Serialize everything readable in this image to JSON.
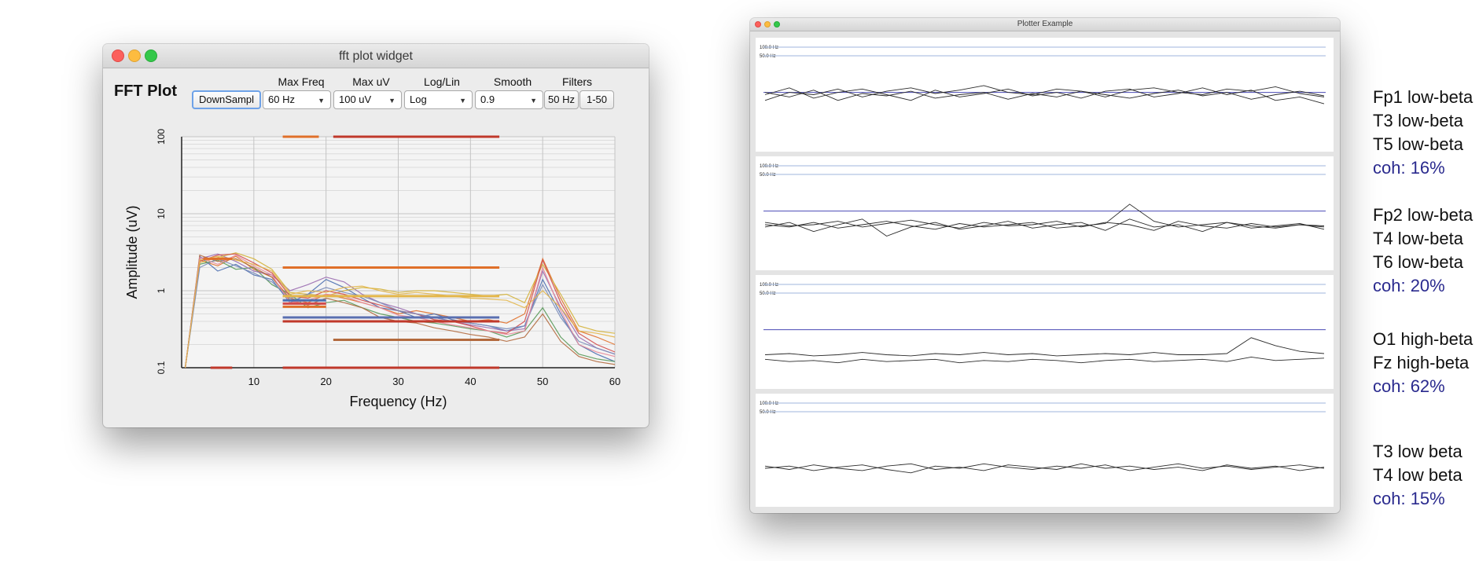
{
  "fft_window": {
    "title": "fft plot widget",
    "heading": "FFT Plot",
    "controls": {
      "downsample_label": "DownSampl",
      "max_freq": {
        "label": "Max Freq",
        "value": "60 Hz"
      },
      "max_uv": {
        "label": "Max uV",
        "value": "100 uV"
      },
      "log_lin": {
        "label": "Log/Lin",
        "value": "Log"
      },
      "smooth": {
        "label": "Smooth",
        "value": "0.9"
      },
      "filters": {
        "label": "Filters",
        "notch": "50 Hz",
        "band": "1-50"
      }
    }
  },
  "chart_data": {
    "type": "line",
    "title": "",
    "xlabel": "Frequency (Hz)",
    "ylabel": "Amplitude (uV)",
    "xlim": [
      0,
      60
    ],
    "ylim": [
      0.1,
      100
    ],
    "y_scale": "log",
    "grid": true,
    "x_ticks": [
      "10",
      "20",
      "30",
      "40",
      "50",
      "60"
    ],
    "y_ticks": [
      "0.1",
      "1",
      "10",
      "100"
    ],
    "colors": [
      "#e0702a",
      "#4c6fb0",
      "#5a9a5a",
      "#9a6cb0",
      "#d4b23a",
      "#d24a4a",
      "#b36a3e",
      "#7a8bb8",
      "#e88a9a",
      "#e3b64a"
    ],
    "x": [
      0.5,
      2.5,
      5,
      7.5,
      10,
      12.5,
      15,
      17.5,
      20,
      22.5,
      25,
      27.5,
      30,
      32.5,
      35,
      37.5,
      40,
      42.5,
      45,
      47.5,
      50,
      52.5,
      55,
      57.5,
      60
    ],
    "series": [
      {
        "values": [
          0.1,
          2.5,
          2.1,
          2.8,
          1.9,
          1.5,
          0.8,
          0.7,
          0.9,
          0.8,
          0.7,
          0.6,
          0.5,
          0.55,
          0.5,
          0.45,
          0.4,
          0.42,
          0.38,
          0.5,
          2.6,
          0.8,
          0.3,
          0.25,
          0.2
        ]
      },
      {
        "values": [
          0.1,
          2.8,
          1.8,
          2.2,
          1.6,
          1.4,
          0.7,
          0.9,
          1.4,
          1.1,
          0.8,
          0.6,
          0.55,
          0.45,
          0.5,
          0.42,
          0.38,
          0.35,
          0.3,
          0.35,
          1.4,
          0.5,
          0.2,
          0.15,
          0.12
        ]
      },
      {
        "values": [
          0.1,
          2.2,
          2.5,
          1.9,
          2.0,
          1.2,
          0.9,
          0.6,
          0.7,
          0.75,
          0.6,
          0.5,
          0.45,
          0.4,
          0.38,
          0.35,
          0.32,
          0.3,
          0.25,
          0.3,
          0.6,
          0.25,
          0.15,
          0.13,
          0.12
        ]
      },
      {
        "values": [
          0.1,
          2.6,
          3.0,
          2.4,
          1.8,
          1.6,
          1.0,
          1.2,
          1.5,
          1.3,
          0.9,
          0.7,
          0.6,
          0.5,
          0.45,
          0.4,
          0.36,
          0.33,
          0.3,
          0.32,
          1.8,
          0.6,
          0.25,
          0.18,
          0.15
        ]
      },
      {
        "values": [
          0.1,
          2.3,
          2.7,
          3.1,
          2.6,
          1.9,
          0.95,
          0.9,
          0.85,
          1.0,
          1.1,
          1.05,
          0.95,
          1.0,
          1.0,
          0.95,
          0.9,
          0.85,
          0.9,
          0.7,
          2.2,
          0.9,
          0.35,
          0.3,
          0.28
        ]
      },
      {
        "values": [
          0.1,
          2.4,
          2.9,
          3.0,
          2.3,
          1.7,
          0.85,
          0.8,
          1.0,
          0.9,
          0.75,
          0.65,
          0.55,
          0.5,
          0.42,
          0.4,
          0.35,
          0.3,
          0.28,
          0.4,
          2.5,
          0.7,
          0.28,
          0.2,
          0.16
        ]
      },
      {
        "values": [
          0.1,
          2.9,
          2.4,
          2.6,
          2.0,
          1.5,
          0.75,
          0.65,
          0.8,
          0.7,
          0.6,
          0.45,
          0.4,
          0.38,
          0.33,
          0.3,
          0.27,
          0.25,
          0.22,
          0.25,
          0.5,
          0.22,
          0.14,
          0.12,
          0.11
        ]
      },
      {
        "values": [
          0.1,
          2.0,
          2.6,
          2.1,
          1.7,
          1.3,
          0.8,
          0.9,
          1.1,
          0.95,
          0.85,
          0.7,
          0.55,
          0.5,
          0.45,
          0.4,
          0.38,
          0.35,
          0.32,
          0.35,
          1.2,
          0.45,
          0.22,
          0.18,
          0.15
        ]
      },
      {
        "values": [
          0.1,
          2.7,
          2.2,
          2.9,
          2.1,
          1.6,
          0.7,
          0.75,
          0.9,
          0.85,
          0.7,
          0.6,
          0.48,
          0.45,
          0.4,
          0.36,
          0.33,
          0.3,
          0.27,
          0.3,
          2.0,
          0.55,
          0.2,
          0.16,
          0.14
        ]
      },
      {
        "values": [
          0.1,
          2.5,
          2.8,
          2.5,
          2.2,
          1.8,
          0.9,
          1.0,
          0.95,
          1.1,
          1.15,
          1.0,
          0.9,
          0.95,
          0.9,
          0.85,
          0.8,
          0.78,
          0.75,
          0.6,
          1.0,
          0.6,
          0.3,
          0.28,
          0.25
        ]
      }
    ],
    "band_markers": [
      {
        "x": [
          3,
          7
        ],
        "y": 2.6,
        "color": "#e0702a"
      },
      {
        "x": [
          14,
          44
        ],
        "y": 2.0,
        "color": "#e0702a"
      },
      {
        "x": [
          14,
          44
        ],
        "y": 0.85,
        "color": "#e3b64a"
      },
      {
        "x": [
          14,
          20
        ],
        "y": 0.75,
        "color": "#4c6fb0"
      },
      {
        "x": [
          14,
          20
        ],
        "y": 0.68,
        "color": "#d24a4a"
      },
      {
        "x": [
          14,
          20
        ],
        "y": 0.62,
        "color": "#e0702a"
      },
      {
        "x": [
          14,
          44
        ],
        "y": 0.45,
        "color": "#5a6fb0"
      },
      {
        "x": [
          14,
          44
        ],
        "y": 0.4,
        "color": "#c0392b"
      },
      {
        "x": [
          21,
          44
        ],
        "y": 0.23,
        "color": "#b36a3e"
      },
      {
        "x": [
          14,
          44
        ],
        "y": 0.1,
        "color": "#c0392b"
      },
      {
        "x": [
          14,
          19
        ],
        "y": 100,
        "color": "#e0702a"
      },
      {
        "x": [
          21,
          44
        ],
        "y": 100,
        "color": "#c0392b"
      },
      {
        "x": [
          4,
          7
        ],
        "y": 0.1,
        "color": "#c0392b"
      }
    ]
  },
  "plotter_window": {
    "title": "Plotter Example",
    "hz_labels": [
      "100.0  Hz",
      "50.0  Hz"
    ],
    "panels": [
      {
        "baseline_ref": true,
        "traces": [
          [
            0.55,
            0.48,
            0.5,
            0.45,
            0.52,
            0.47,
            0.44,
            0.49,
            0.46,
            0.42,
            0.48,
            0.5,
            0.45,
            0.47,
            0.52,
            0.46,
            0.44,
            0.48,
            0.5,
            0.45,
            0.47,
            0.43,
            0.49,
            0.52
          ],
          [
            0.48,
            0.52,
            0.46,
            0.55,
            0.49,
            0.51,
            0.47,
            0.53,
            0.5,
            0.48,
            0.54,
            0.49,
            0.52,
            0.47,
            0.5,
            0.53,
            0.49,
            0.46,
            0.51,
            0.48,
            0.54,
            0.5,
            0.47,
            0.51
          ],
          [
            0.5,
            0.44,
            0.53,
            0.48,
            0.45,
            0.5,
            0.55,
            0.46,
            0.52,
            0.49,
            0.45,
            0.51,
            0.48,
            0.53,
            0.47,
            0.45,
            0.52,
            0.49,
            0.44,
            0.5,
            0.46,
            0.55,
            0.52,
            0.58
          ]
        ]
      },
      {
        "baseline_ref": true,
        "traces": [
          [
            0.6,
            0.62,
            0.58,
            0.63,
            0.6,
            0.57,
            0.61,
            0.64,
            0.59,
            0.62,
            0.6,
            0.58,
            0.63,
            0.61,
            0.59,
            0.42,
            0.57,
            0.62,
            0.6,
            0.58,
            0.63,
            0.61,
            0.59,
            0.64
          ],
          [
            0.62,
            0.58,
            0.66,
            0.6,
            0.55,
            0.7,
            0.62,
            0.58,
            0.64,
            0.61,
            0.57,
            0.63,
            0.6,
            0.58,
            0.65,
            0.55,
            0.62,
            0.6,
            0.66,
            0.58,
            0.61,
            0.63,
            0.6,
            0.62
          ],
          [
            0.58,
            0.61,
            0.6,
            0.57,
            0.62,
            0.59,
            0.56,
            0.6,
            0.63,
            0.58,
            0.61,
            0.6,
            0.57,
            0.62,
            0.58,
            0.6,
            0.65,
            0.57,
            0.61,
            0.63,
            0.59,
            0.62,
            0.6,
            0.61
          ]
        ]
      },
      {
        "baseline_ref": true,
        "traces": [
          [
            0.7,
            0.69,
            0.71,
            0.7,
            0.68,
            0.7,
            0.71,
            0.69,
            0.7,
            0.68,
            0.7,
            0.69,
            0.71,
            0.7,
            0.69,
            0.7,
            0.68,
            0.7,
            0.7,
            0.69,
            0.55,
            0.62,
            0.67,
            0.69
          ],
          [
            0.74,
            0.76,
            0.75,
            0.77,
            0.74,
            0.76,
            0.75,
            0.74,
            0.77,
            0.75,
            0.76,
            0.74,
            0.75,
            0.77,
            0.75,
            0.74,
            0.76,
            0.75,
            0.74,
            0.76,
            0.72,
            0.75,
            0.74,
            0.73
          ]
        ]
      },
      {
        "baseline_ref": false,
        "traces": [
          [
            0.66,
            0.64,
            0.68,
            0.65,
            0.63,
            0.67,
            0.7,
            0.64,
            0.66,
            0.62,
            0.65,
            0.67,
            0.64,
            0.66,
            0.63,
            0.68,
            0.65,
            0.62,
            0.66,
            0.64,
            0.67,
            0.65,
            0.63,
            0.66
          ],
          [
            0.64,
            0.67,
            0.63,
            0.66,
            0.68,
            0.64,
            0.62,
            0.67,
            0.65,
            0.68,
            0.63,
            0.65,
            0.67,
            0.62,
            0.66,
            0.64,
            0.67,
            0.65,
            0.68,
            0.63,
            0.66,
            0.64,
            0.68,
            0.65
          ]
        ]
      }
    ]
  },
  "coherence_labels": [
    {
      "lines": [
        "Fp1 low-beta",
        "T3 low-beta",
        "T5 low-beta"
      ],
      "coh": "coh: 16%"
    },
    {
      "lines": [
        "Fp2 low-beta",
        "T4 low-beta",
        "T6 low-beta"
      ],
      "coh": "coh: 20%"
    },
    {
      "lines": [
        "O1 high-beta",
        "Fz high-beta"
      ],
      "coh": "coh: 62%"
    },
    {
      "lines": [
        "T3 low beta",
        "T4 low beta"
      ],
      "coh": "coh: 15%"
    }
  ]
}
